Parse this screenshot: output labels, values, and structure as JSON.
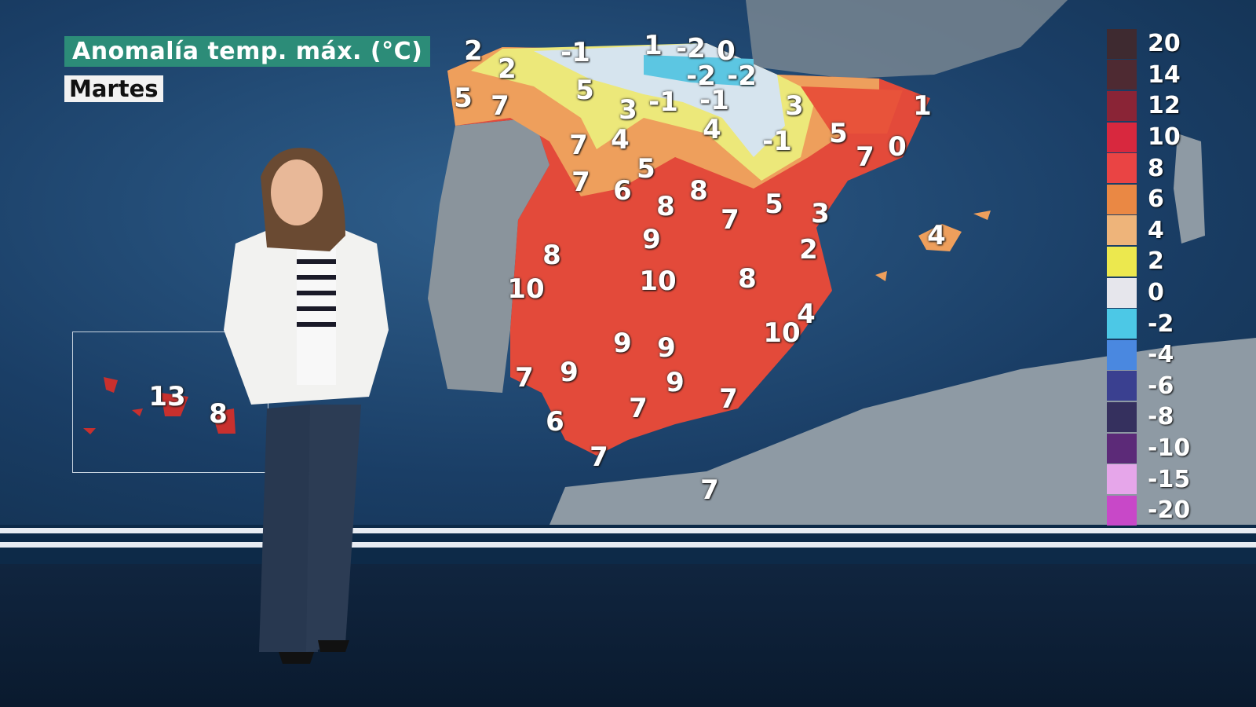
{
  "overlay": {
    "title": "Anomalía temp. máx. (°C)",
    "day": "Martes"
  },
  "legend": {
    "items": [
      {
        "label": "20",
        "color": "#3e2a30"
      },
      {
        "label": "14",
        "color": "#4e2a32"
      },
      {
        "label": "12",
        "color": "#8a2436"
      },
      {
        "label": "10",
        "color": "#d8283e"
      },
      {
        "label": "8",
        "color": "#ea4444"
      },
      {
        "label": "6",
        "color": "#ea8844"
      },
      {
        "label": "4",
        "color": "#eeb47a"
      },
      {
        "label": "2",
        "color": "#ece84e"
      },
      {
        "label": "0",
        "color": "#e6e6ec"
      },
      {
        "label": "-2",
        "color": "#4cc8e6"
      },
      {
        "label": "-4",
        "color": "#4a88e0"
      },
      {
        "label": "-6",
        "color": "#3a4090"
      },
      {
        "label": "-8",
        "color": "#35305e"
      },
      {
        "label": "-10",
        "color": "#5c2a78"
      },
      {
        "label": "-15",
        "color": "#e6a6ea"
      },
      {
        "label": "-20",
        "color": "#c848c8"
      }
    ]
  },
  "map": {
    "peninsula_values": [
      "2",
      "2",
      "5",
      "7",
      "-1",
      "1",
      "-2",
      "0",
      "-2",
      "-2",
      "5",
      "3",
      "-1",
      "-1",
      "3",
      "1",
      "4",
      "-1",
      "5",
      "7",
      "0",
      "7",
      "4",
      "5",
      "7",
      "6",
      "8",
      "8",
      "7",
      "5",
      "3",
      "9",
      "2",
      "4",
      "8",
      "10",
      "10",
      "8",
      "4",
      "10",
      "9",
      "9",
      "7",
      "9",
      "9",
      "7",
      "7",
      "6",
      "7",
      "7"
    ],
    "canary_values": [
      "13",
      "8"
    ]
  }
}
